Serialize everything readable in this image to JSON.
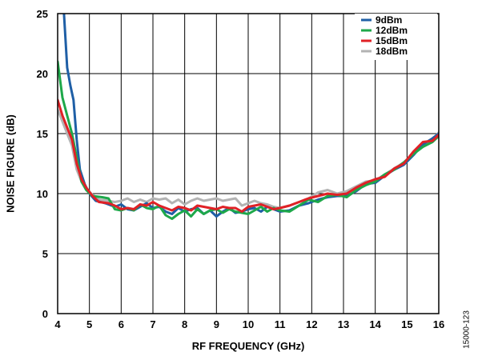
{
  "figure_id": "15000-123",
  "chart_data": {
    "type": "line",
    "title": "",
    "xlabel": "RF FREQUENCY (GHz)",
    "ylabel": "NOISE FIGURE (dB)",
    "xlim": [
      4,
      16
    ],
    "ylim": [
      0,
      25
    ],
    "xticks": [
      4,
      5,
      6,
      7,
      8,
      9,
      10,
      11,
      12,
      13,
      14,
      15,
      16
    ],
    "yticks": [
      0,
      5,
      10,
      15,
      20,
      25
    ],
    "grid": true,
    "legend_position": "top-right",
    "series": [
      {
        "name": "9dBm",
        "color": "#1f5fa6",
        "points": [
          [
            4.2,
            25
          ],
          [
            4.3,
            20.5
          ],
          [
            4.4,
            19
          ],
          [
            4.5,
            17.8
          ],
          [
            4.6,
            14.5
          ],
          [
            4.7,
            12
          ],
          [
            4.85,
            10.8
          ],
          [
            5.0,
            10.0
          ],
          [
            5.2,
            9.4
          ],
          [
            5.5,
            9.2
          ],
          [
            5.8,
            8.9
          ],
          [
            6.0,
            9.1
          ],
          [
            6.2,
            8.7
          ],
          [
            6.4,
            8.6
          ],
          [
            6.6,
            8.9
          ],
          [
            6.8,
            9.2
          ],
          [
            7.0,
            8.8
          ],
          [
            7.2,
            8.9
          ],
          [
            7.4,
            8.5
          ],
          [
            7.6,
            8.3
          ],
          [
            7.8,
            8.8
          ],
          [
            8.0,
            8.5
          ],
          [
            8.2,
            8.7
          ],
          [
            8.4,
            8.8
          ],
          [
            8.6,
            8.3
          ],
          [
            8.8,
            8.6
          ],
          [
            9.0,
            8.1
          ],
          [
            9.2,
            8.5
          ],
          [
            9.4,
            8.8
          ],
          [
            9.6,
            8.4
          ],
          [
            9.8,
            8.5
          ],
          [
            10.0,
            8.7
          ],
          [
            10.2,
            8.8
          ],
          [
            10.4,
            8.5
          ],
          [
            10.6,
            8.9
          ],
          [
            10.8,
            8.7
          ],
          [
            11.0,
            8.5
          ],
          [
            11.3,
            8.6
          ],
          [
            11.6,
            9.0
          ],
          [
            11.9,
            9.2
          ],
          [
            12.2,
            9.5
          ],
          [
            12.5,
            9.7
          ],
          [
            12.8,
            9.8
          ],
          [
            13.1,
            9.8
          ],
          [
            13.4,
            10.2
          ],
          [
            13.7,
            10.8
          ],
          [
            14.0,
            10.9
          ],
          [
            14.3,
            11.5
          ],
          [
            14.6,
            12.0
          ],
          [
            14.9,
            12.4
          ],
          [
            15.2,
            13.2
          ],
          [
            15.5,
            14.1
          ],
          [
            15.8,
            14.6
          ],
          [
            16.0,
            15.0
          ]
        ]
      },
      {
        "name": "12dBm",
        "color": "#1ea84a",
        "points": [
          [
            4.0,
            21
          ],
          [
            4.15,
            18
          ],
          [
            4.3,
            16.5
          ],
          [
            4.45,
            15.0
          ],
          [
            4.6,
            13.0
          ],
          [
            4.75,
            11.0
          ],
          [
            4.9,
            10.3
          ],
          [
            5.1,
            9.8
          ],
          [
            5.4,
            9.7
          ],
          [
            5.6,
            9.6
          ],
          [
            5.8,
            8.7
          ],
          [
            6.0,
            8.6
          ],
          [
            6.2,
            8.8
          ],
          [
            6.4,
            8.6
          ],
          [
            6.6,
            9.1
          ],
          [
            6.8,
            8.8
          ],
          [
            7.0,
            8.7
          ],
          [
            7.2,
            9.0
          ],
          [
            7.4,
            8.2
          ],
          [
            7.6,
            7.9
          ],
          [
            7.8,
            8.3
          ],
          [
            8.0,
            8.6
          ],
          [
            8.2,
            8.1
          ],
          [
            8.4,
            8.7
          ],
          [
            8.6,
            8.3
          ],
          [
            8.8,
            8.6
          ],
          [
            9.0,
            8.7
          ],
          [
            9.2,
            8.4
          ],
          [
            9.4,
            8.7
          ],
          [
            9.6,
            8.5
          ],
          [
            9.8,
            8.4
          ],
          [
            10.0,
            8.3
          ],
          [
            10.2,
            8.6
          ],
          [
            10.4,
            8.9
          ],
          [
            10.6,
            8.5
          ],
          [
            10.8,
            8.8
          ],
          [
            11.0,
            8.6
          ],
          [
            11.3,
            8.5
          ],
          [
            11.6,
            9.0
          ],
          [
            11.9,
            9.5
          ],
          [
            12.2,
            9.3
          ],
          [
            12.5,
            9.8
          ],
          [
            12.8,
            9.9
          ],
          [
            13.1,
            9.7
          ],
          [
            13.4,
            10.3
          ],
          [
            13.7,
            10.7
          ],
          [
            14.0,
            11.0
          ],
          [
            14.3,
            11.6
          ],
          [
            14.6,
            12.0
          ],
          [
            14.9,
            12.6
          ],
          [
            15.2,
            13.3
          ],
          [
            15.5,
            13.9
          ],
          [
            15.8,
            14.3
          ],
          [
            16.0,
            14.8
          ]
        ]
      },
      {
        "name": "15dBm",
        "color": "#e02126",
        "points": [
          [
            4.0,
            17.8
          ],
          [
            4.15,
            16.5
          ],
          [
            4.3,
            15.5
          ],
          [
            4.45,
            14.5
          ],
          [
            4.6,
            12.5
          ],
          [
            4.75,
            11.2
          ],
          [
            4.9,
            10.5
          ],
          [
            5.1,
            9.8
          ],
          [
            5.3,
            9.3
          ],
          [
            5.6,
            9.2
          ],
          [
            5.8,
            9.0
          ],
          [
            6.0,
            8.7
          ],
          [
            6.2,
            8.8
          ],
          [
            6.4,
            8.7
          ],
          [
            6.6,
            9.1
          ],
          [
            6.8,
            9.0
          ],
          [
            7.0,
            9.3
          ],
          [
            7.2,
            9.0
          ],
          [
            7.4,
            8.8
          ],
          [
            7.6,
            8.6
          ],
          [
            7.8,
            8.9
          ],
          [
            8.0,
            8.8
          ],
          [
            8.2,
            8.6
          ],
          [
            8.4,
            9.0
          ],
          [
            8.6,
            8.9
          ],
          [
            8.8,
            8.8
          ],
          [
            9.0,
            8.7
          ],
          [
            9.2,
            8.9
          ],
          [
            9.4,
            8.8
          ],
          [
            9.6,
            8.8
          ],
          [
            9.8,
            8.5
          ],
          [
            10.0,
            8.9
          ],
          [
            10.2,
            9.0
          ],
          [
            10.4,
            9.1
          ],
          [
            10.6,
            8.9
          ],
          [
            10.8,
            8.7
          ],
          [
            11.0,
            8.8
          ],
          [
            11.3,
            9.0
          ],
          [
            11.6,
            9.3
          ],
          [
            11.9,
            9.6
          ],
          [
            12.2,
            9.8
          ],
          [
            12.5,
            10.0
          ],
          [
            12.8,
            9.9
          ],
          [
            13.1,
            10.0
          ],
          [
            13.4,
            10.5
          ],
          [
            13.7,
            10.9
          ],
          [
            14.0,
            11.2
          ],
          [
            14.3,
            11.4
          ],
          [
            14.6,
            12.1
          ],
          [
            14.9,
            12.5
          ],
          [
            15.2,
            13.5
          ],
          [
            15.5,
            14.3
          ],
          [
            15.8,
            14.4
          ],
          [
            16.0,
            14.9
          ]
        ]
      },
      {
        "name": "18dBm",
        "color": "#b3b3b3",
        "points": [
          [
            4.0,
            17.0
          ],
          [
            4.15,
            16.0
          ],
          [
            4.3,
            15.0
          ],
          [
            4.45,
            14.0
          ],
          [
            4.6,
            12.0
          ],
          [
            4.75,
            11.0
          ],
          [
            4.9,
            10.4
          ],
          [
            5.1,
            9.9
          ],
          [
            5.3,
            9.5
          ],
          [
            5.6,
            9.4
          ],
          [
            5.8,
            9.3
          ],
          [
            6.0,
            9.4
          ],
          [
            6.2,
            9.6
          ],
          [
            6.4,
            9.3
          ],
          [
            6.6,
            9.5
          ],
          [
            6.8,
            9.3
          ],
          [
            7.0,
            9.6
          ],
          [
            7.2,
            9.5
          ],
          [
            7.4,
            9.6
          ],
          [
            7.6,
            9.2
          ],
          [
            7.8,
            9.5
          ],
          [
            8.0,
            9.1
          ],
          [
            8.2,
            9.4
          ],
          [
            8.4,
            9.6
          ],
          [
            8.6,
            9.4
          ],
          [
            8.8,
            9.5
          ],
          [
            9.0,
            9.6
          ],
          [
            9.2,
            9.4
          ],
          [
            9.4,
            9.5
          ],
          [
            9.6,
            9.6
          ],
          [
            9.8,
            9.0
          ],
          [
            10.0,
            9.2
          ],
          [
            10.2,
            9.4
          ],
          [
            10.4,
            9.2
          ],
          [
            10.6,
            9.1
          ],
          [
            10.8,
            8.9
          ],
          [
            11.0,
            8.8
          ],
          [
            11.3,
            9.0
          ],
          [
            11.6,
            9.3
          ],
          [
            11.9,
            9.6
          ],
          [
            12.2,
            10.1
          ],
          [
            12.5,
            10.3
          ],
          [
            12.8,
            10.0
          ],
          [
            13.1,
            10.2
          ],
          [
            13.4,
            10.6
          ],
          [
            13.7,
            11.0
          ],
          [
            14.0,
            11.1
          ],
          [
            14.3,
            11.6
          ],
          [
            14.6,
            12.1
          ],
          [
            14.9,
            12.6
          ],
          [
            15.2,
            13.4
          ],
          [
            15.5,
            13.9
          ],
          [
            15.8,
            14.5
          ],
          [
            16.0,
            15.1
          ]
        ]
      }
    ]
  }
}
